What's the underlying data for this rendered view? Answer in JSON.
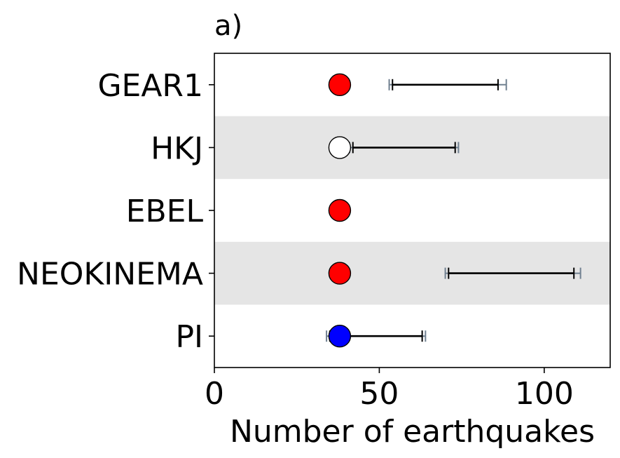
{
  "chart_data": {
    "type": "scatter",
    "title": "a)",
    "xlabel": "Number of earthquakes",
    "ylabel": "",
    "xlim": [
      0,
      120
    ],
    "xticks": [
      0,
      50,
      100
    ],
    "xtick_labels": [
      "0",
      "50",
      "100"
    ],
    "grid": false,
    "band_color": "#e5e5e5",
    "observed_value": 38,
    "categories": [
      "GEAR1",
      "HKJ",
      "EBEL",
      "NEOKINEMA",
      "PI"
    ],
    "points": [
      {
        "model": "GEAR1",
        "value": 38,
        "color": "#ff0000",
        "inner_range": [
          54,
          86
        ],
        "outer_range": [
          53,
          88.5
        ],
        "band": false
      },
      {
        "model": "HKJ",
        "value": 38,
        "color": "#ffffff",
        "inner_range": [
          42,
          73
        ],
        "outer_range": [
          41,
          74
        ],
        "band": true
      },
      {
        "model": "EBEL",
        "value": 38,
        "color": "#ff0000",
        "inner_range": null,
        "outer_range": null,
        "band": false
      },
      {
        "model": "NEOKINEMA",
        "value": 38,
        "color": "#ff0000",
        "inner_range": [
          71,
          109
        ],
        "outer_range": [
          70,
          111
        ],
        "band": true
      },
      {
        "model": "PI",
        "value": 38,
        "color": "#0000ff",
        "inner_range": [
          35,
          63
        ],
        "outer_range": [
          34,
          64
        ],
        "band": false
      }
    ],
    "inner_bar_color": "#000000",
    "outer_bar_color": "#708090"
  }
}
